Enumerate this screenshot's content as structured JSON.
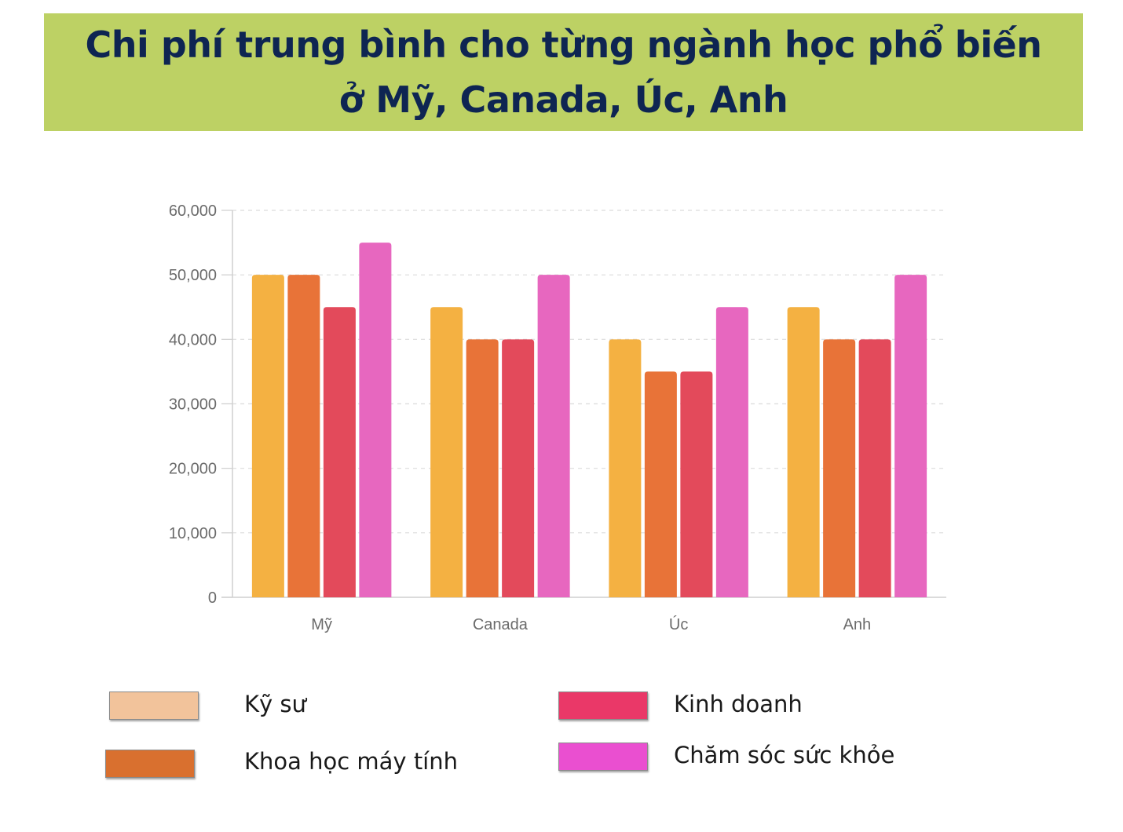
{
  "title": {
    "line1": "Chi phí trung bình cho từng ngành học phổ biến",
    "line2": "ở Mỹ, Canada, Úc, Anh"
  },
  "chart_data": {
    "type": "bar",
    "categories": [
      "Mỹ",
      "Canada",
      "Úc",
      "Anh"
    ],
    "series": [
      {
        "name": "Kỹ sư",
        "values": [
          50000,
          45000,
          40000,
          45000
        ],
        "color": "#f4b142"
      },
      {
        "name": "Khoa học máy tính",
        "values": [
          50000,
          40000,
          35000,
          40000
        ],
        "color": "#e87338"
      },
      {
        "name": "Kinh doanh",
        "values": [
          45000,
          40000,
          35000,
          40000
        ],
        "color": "#e34a5b"
      },
      {
        "name": "Chăm sóc sức khỏe",
        "values": [
          55000,
          50000,
          45000,
          50000
        ],
        "color": "#e767bf"
      }
    ],
    "y_ticks": [
      "0",
      "10,000",
      "20,000",
      "30,000",
      "40,000",
      "50,000",
      "60,000"
    ],
    "ylim": [
      0,
      60000
    ],
    "grid": true,
    "legend_position": "bottom"
  },
  "legend": {
    "items": [
      {
        "label": "Kỹ sư",
        "color": "#f2c39b"
      },
      {
        "label": "Khoa học máy tính",
        "color": "#d9702f"
      },
      {
        "label": "Kinh doanh",
        "color": "#ea3868"
      },
      {
        "label": "Chăm sóc sức khỏe",
        "color": "#ea4fd0"
      }
    ]
  }
}
